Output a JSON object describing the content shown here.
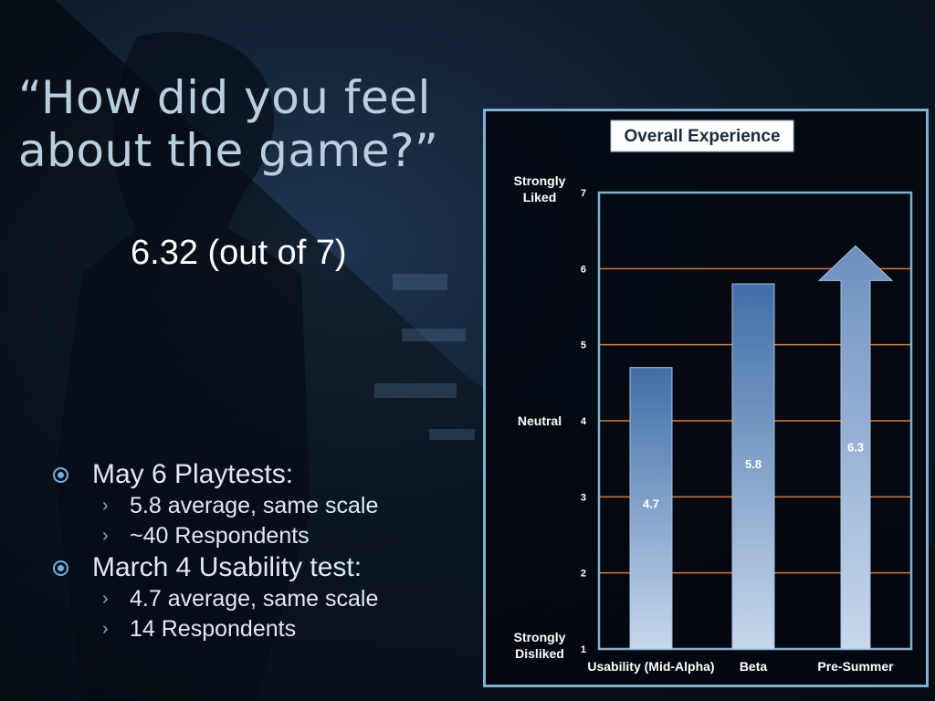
{
  "slide": {
    "title_line1": "“How did you feel",
    "title_line2": "about the game?”",
    "score": "6.32 (out of 7)",
    "bullets": [
      {
        "text": "May 6 Playtests:",
        "subs": [
          "5.8 average, same scale",
          "~40 Respondents"
        ]
      },
      {
        "text": "March 4 Usability test:",
        "subs": [
          "4.7 average, same scale",
          "14 Respondents"
        ]
      }
    ]
  },
  "chart_data": {
    "type": "bar",
    "title": "Overall Experience",
    "categories": [
      "Usability (Mid-Alpha)",
      "Beta",
      "Pre-Summer"
    ],
    "values": [
      4.7,
      5.8,
      6.3
    ],
    "data_labels": [
      "4.7",
      "5.8",
      "6.3"
    ],
    "ylim": [
      1,
      7
    ],
    "yticks": [
      1,
      2,
      3,
      4,
      5,
      6,
      7
    ],
    "scale_labels": [
      {
        "lines": [
          "Strongly",
          "Liked"
        ],
        "y": 7
      },
      {
        "lines": [
          "Neutral"
        ],
        "y": 4
      },
      {
        "lines": [
          "Strongly",
          "Disliked"
        ],
        "y": 1
      }
    ],
    "gridlines": true,
    "last_bar_style": "arrow",
    "colors": {
      "grid": "#e07a2e",
      "bar_top": "#3f6ea8",
      "bar_bottom": "#c7d8ec",
      "axis": "#7fb1cf"
    }
  }
}
